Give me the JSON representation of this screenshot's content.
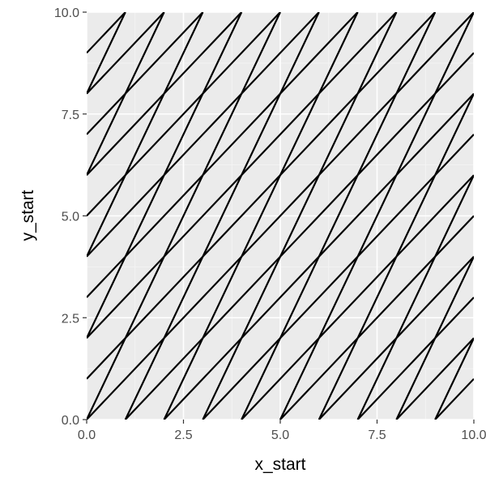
{
  "chart_data": {
    "type": "line",
    "xlabel": "x_start",
    "ylabel": "y_start",
    "xlim": [
      0,
      10
    ],
    "ylim": [
      0,
      10
    ],
    "x_ticks": [
      0,
      2.5,
      5,
      7.5,
      10
    ],
    "x_tick_labels": [
      "0.0",
      "2.5",
      "5.0",
      "7.5",
      "10.0"
    ],
    "y_ticks": [
      0,
      2.5,
      5,
      7.5,
      10
    ],
    "y_tick_labels": [
      "0.0",
      "2.5",
      "5.0",
      "7.5",
      "10.0"
    ],
    "grid": true,
    "legend": "none",
    "segments": [
      {
        "x_start": 0,
        "y_start": 0,
        "x_end": 10,
        "y_end": 10
      },
      {
        "x_start": 0,
        "y_start": 1,
        "x_end": 9,
        "y_end": 10
      },
      {
        "x_start": 0,
        "y_start": 2,
        "x_end": 8,
        "y_end": 10
      },
      {
        "x_start": 0,
        "y_start": 3,
        "x_end": 7,
        "y_end": 10
      },
      {
        "x_start": 0,
        "y_start": 4,
        "x_end": 6,
        "y_end": 10
      },
      {
        "x_start": 0,
        "y_start": 5,
        "x_end": 5,
        "y_end": 10
      },
      {
        "x_start": 0,
        "y_start": 6,
        "x_end": 4,
        "y_end": 10
      },
      {
        "x_start": 0,
        "y_start": 7,
        "x_end": 3,
        "y_end": 10
      },
      {
        "x_start": 0,
        "y_start": 8,
        "x_end": 2,
        "y_end": 10
      },
      {
        "x_start": 0,
        "y_start": 9,
        "x_end": 1,
        "y_end": 10
      },
      {
        "x_start": 1,
        "y_start": 0,
        "x_end": 10,
        "y_end": 9
      },
      {
        "x_start": 2,
        "y_start": 0,
        "x_end": 10,
        "y_end": 8
      },
      {
        "x_start": 3,
        "y_start": 0,
        "x_end": 10,
        "y_end": 7
      },
      {
        "x_start": 4,
        "y_start": 0,
        "x_end": 10,
        "y_end": 6
      },
      {
        "x_start": 5,
        "y_start": 0,
        "x_end": 10,
        "y_end": 5
      },
      {
        "x_start": 6,
        "y_start": 0,
        "x_end": 10,
        "y_end": 4
      },
      {
        "x_start": 7,
        "y_start": 0,
        "x_end": 10,
        "y_end": 3
      },
      {
        "x_start": 8,
        "y_start": 0,
        "x_end": 10,
        "y_end": 2
      },
      {
        "x_start": 9,
        "y_start": 0,
        "x_end": 10,
        "y_end": 1
      },
      {
        "x_start": 0,
        "y_start": 0,
        "x_end": 5,
        "y_end": 10
      },
      {
        "x_start": 0,
        "y_start": 2,
        "x_end": 4,
        "y_end": 10
      },
      {
        "x_start": 0,
        "y_start": 4,
        "x_end": 3,
        "y_end": 10
      },
      {
        "x_start": 0,
        "y_start": 6,
        "x_end": 2,
        "y_end": 10
      },
      {
        "x_start": 0,
        "y_start": 8,
        "x_end": 1,
        "y_end": 10
      },
      {
        "x_start": 1,
        "y_start": 0,
        "x_end": 6,
        "y_end": 10
      },
      {
        "x_start": 2,
        "y_start": 0,
        "x_end": 7,
        "y_end": 10
      },
      {
        "x_start": 3,
        "y_start": 0,
        "x_end": 8,
        "y_end": 10
      },
      {
        "x_start": 4,
        "y_start": 0,
        "x_end": 9,
        "y_end": 10
      },
      {
        "x_start": 5,
        "y_start": 0,
        "x_end": 10,
        "y_end": 10
      },
      {
        "x_start": 6,
        "y_start": 0,
        "x_end": 10,
        "y_end": 8
      },
      {
        "x_start": 7,
        "y_start": 0,
        "x_end": 10,
        "y_end": 6
      },
      {
        "x_start": 8,
        "y_start": 0,
        "x_end": 10,
        "y_end": 4
      },
      {
        "x_start": 9,
        "y_start": 0,
        "x_end": 10,
        "y_end": 2
      }
    ]
  },
  "colors": {
    "panel_background": "#ebebeb",
    "major_grid": "#ffffff",
    "minor_grid": "#f5f5f5",
    "line": "#000000",
    "tick_text": "#4d4d4d",
    "axis_title": "#000000"
  }
}
